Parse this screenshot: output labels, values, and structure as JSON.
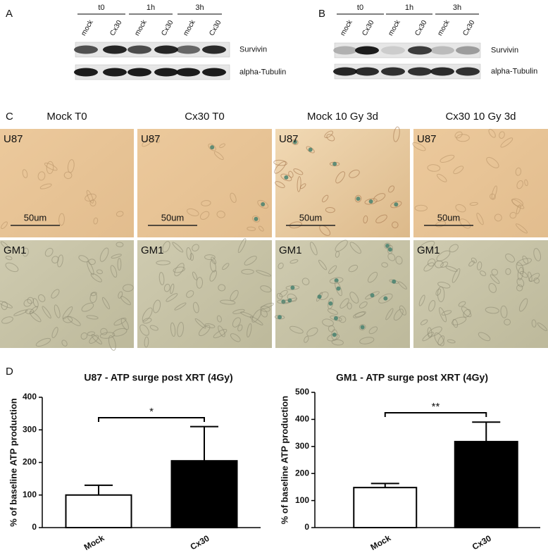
{
  "panel_labels": [
    "A",
    "B",
    "C",
    "D"
  ],
  "blot_a": {
    "timepoints": [
      "t0",
      "1h",
      "3h"
    ],
    "lanes": [
      "mock",
      "Cx30",
      "mock",
      "Cx30",
      "mock",
      "Cx30"
    ],
    "rows": [
      "Survivin",
      "alpha-Tubulin"
    ]
  },
  "blot_b": {
    "timepoints": [
      "t0",
      "1h",
      "3h"
    ],
    "lanes": [
      "mock",
      "Cx30",
      "mock",
      "Cx30",
      "mock",
      "Cx30"
    ],
    "rows": [
      "Survivin",
      "alpha-Tubulin"
    ]
  },
  "micrographs": {
    "columns": [
      "Mock T0",
      "Cx30 T0",
      "Mock 10 Gy 3d",
      "Cx30 10 Gy 3d"
    ],
    "rows": [
      "U87",
      "GM1"
    ],
    "scale_bar": "50um"
  },
  "chart_data": [
    {
      "type": "bar",
      "title": "U87 - ATP surge post XRT (4Gy)",
      "ylabel": "% of baseline ATP production",
      "categories": [
        "Mock",
        "Cx30"
      ],
      "values": [
        100,
        205
      ],
      "errors": [
        30,
        105
      ],
      "colors": [
        "#ffffff",
        "#000000"
      ],
      "annotation": "*",
      "ylim": [
        0,
        400
      ],
      "yticks": [
        0,
        100,
        200,
        300,
        400
      ]
    },
    {
      "type": "bar",
      "title": "GM1 - ATP surge post XRT (4Gy)",
      "ylabel": "% of baseline ATP production",
      "categories": [
        "Mock",
        "Cx30"
      ],
      "values": [
        148,
        318
      ],
      "errors": [
        15,
        72
      ],
      "colors": [
        "#ffffff",
        "#000000"
      ],
      "annotation": "**",
      "ylim": [
        0,
        500
      ],
      "yticks": [
        0,
        100,
        200,
        300,
        400,
        500
      ]
    }
  ]
}
